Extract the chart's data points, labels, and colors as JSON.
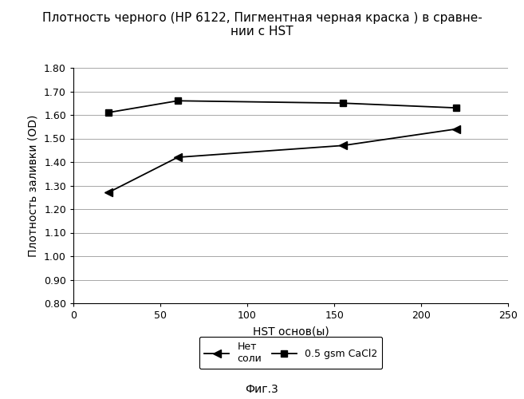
{
  "title_line1": "Плотность черного (HP 6122, Пигментная черная краска ) в сравне-",
  "title_line2": "нии с HST",
  "xlabel": "HST основ(ы)",
  "ylabel": "Плотность заливки (OD)",
  "caption": "Фиг.3",
  "xlim": [
    0,
    250
  ],
  "ylim": [
    0.8,
    1.8
  ],
  "yticks": [
    0.8,
    0.9,
    1.0,
    1.1,
    1.2,
    1.3,
    1.4,
    1.5,
    1.6,
    1.7,
    1.8
  ],
  "ytick_labels": [
    "0.80",
    "0.90",
    "1.00",
    "1.10",
    "1.20",
    "1.30",
    "1.40",
    "1.50",
    "1.60",
    "1.70",
    "1.80"
  ],
  "xticks": [
    0,
    50,
    100,
    150,
    200,
    250
  ],
  "series1_label": "Нет\nсоли",
  "series1_x": [
    20,
    60,
    155,
    220
  ],
  "series1_y": [
    1.27,
    1.42,
    1.47,
    1.54
  ],
  "series2_label": "0.5 gsm CaCl2",
  "series2_x": [
    20,
    60,
    155,
    220
  ],
  "series2_y": [
    1.61,
    1.66,
    1.65,
    1.63
  ],
  "line_color": "#000000",
  "background_color": "#ffffff",
  "grid_color": "#999999",
  "title_fontsize": 11,
  "label_fontsize": 10,
  "tick_fontsize": 9,
  "caption_fontsize": 10,
  "legend_fontsize": 9
}
